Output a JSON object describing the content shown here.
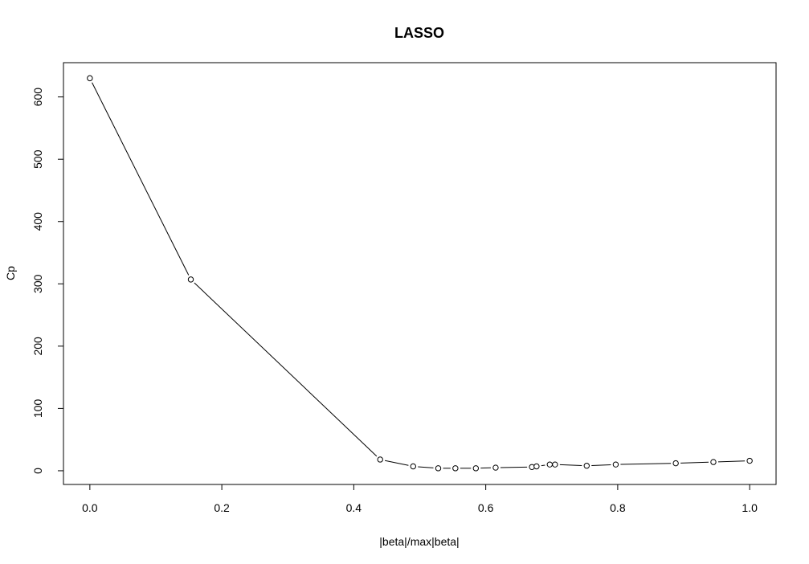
{
  "chart_data": {
    "type": "line",
    "title": "LASSO",
    "xlabel": "|beta|/max|beta|",
    "ylabel": "Cp",
    "xlim": [
      -0.04,
      1.04
    ],
    "ylim": [
      -22,
      655
    ],
    "x_ticks": [
      0.0,
      0.2,
      0.4,
      0.6,
      0.8,
      1.0
    ],
    "x_tick_labels": [
      "0.0",
      "0.2",
      "0.4",
      "0.6",
      "0.8",
      "1.0"
    ],
    "y_ticks": [
      0,
      100,
      200,
      300,
      400,
      500,
      600
    ],
    "y_tick_labels": [
      "0",
      "100",
      "200",
      "300",
      "400",
      "500",
      "600"
    ],
    "grid": false,
    "marker": "open-circle",
    "points": [
      {
        "x": 0.0,
        "y": 630
      },
      {
        "x": 0.153,
        "y": 307
      },
      {
        "x": 0.44,
        "y": 18
      },
      {
        "x": 0.49,
        "y": 7
      },
      {
        "x": 0.528,
        "y": 4
      },
      {
        "x": 0.554,
        "y": 4
      },
      {
        "x": 0.585,
        "y": 4
      },
      {
        "x": 0.615,
        "y": 5
      },
      {
        "x": 0.67,
        "y": 6
      },
      {
        "x": 0.677,
        "y": 7
      },
      {
        "x": 0.697,
        "y": 10
      },
      {
        "x": 0.705,
        "y": 10
      },
      {
        "x": 0.753,
        "y": 8
      },
      {
        "x": 0.797,
        "y": 10
      },
      {
        "x": 0.888,
        "y": 12
      },
      {
        "x": 0.945,
        "y": 14
      },
      {
        "x": 1.0,
        "y": 16
      }
    ]
  }
}
